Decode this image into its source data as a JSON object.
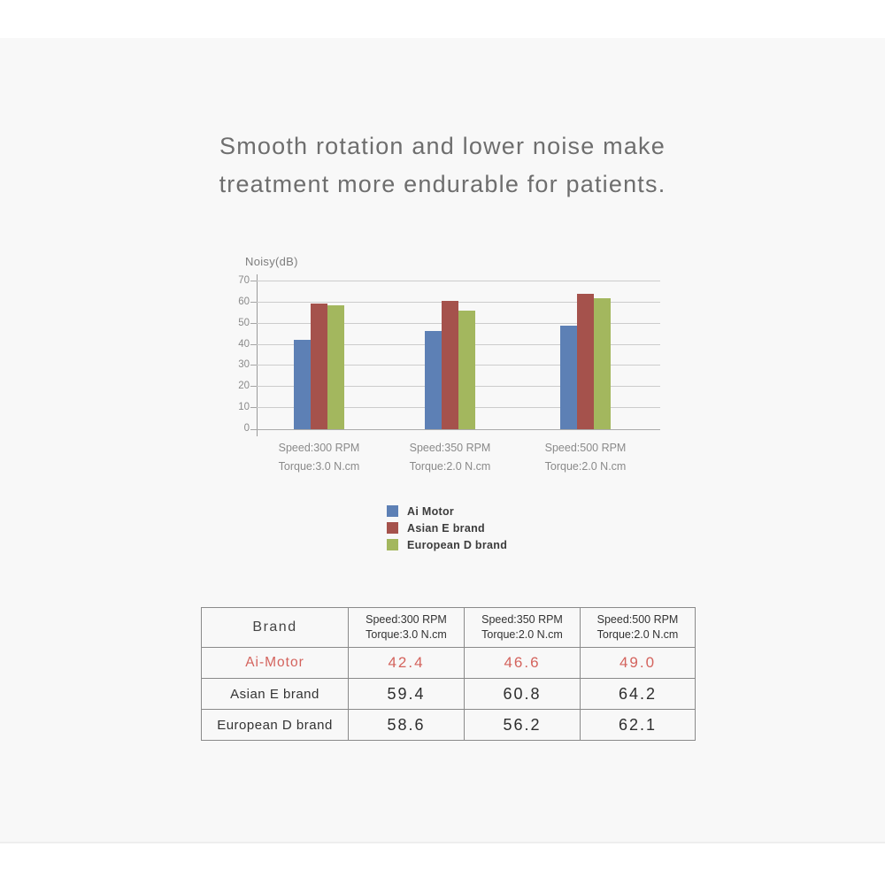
{
  "title": {
    "line1": "Smooth rotation and lower noise make",
    "line2": "treatment more endurable for patients."
  },
  "chart_data": {
    "type": "bar",
    "ylabel": "Noisy(dB)",
    "ylim": [
      0,
      70
    ],
    "ytick_step": 10,
    "grid": true,
    "legend_position": "bottom",
    "categories": [
      {
        "line1": "Speed:300 RPM",
        "line2": "Torque:3.0 N.cm"
      },
      {
        "line1": "Speed:350 RPM",
        "line2": "Torque:2.0 N.cm"
      },
      {
        "line1": "Speed:500 RPM",
        "line2": "Torque:2.0 N.cm"
      }
    ],
    "series": [
      {
        "name": "Ai Motor",
        "color": "#5d80b5",
        "values": [
          42.4,
          46.6,
          49.0
        ]
      },
      {
        "name": "Asian E brand",
        "color": "#a5524c",
        "values": [
          59.4,
          60.8,
          64.2
        ]
      },
      {
        "name": "European D brand",
        "color": "#a3b75e",
        "values": [
          58.6,
          56.2,
          62.1
        ]
      }
    ]
  },
  "table": {
    "brand_header": "Brand",
    "col_headers": [
      {
        "line1": "Speed:300 RPM",
        "line2": "Torque:3.0 N.cm"
      },
      {
        "line1": "Speed:350 RPM",
        "line2": "Torque:2.0 N.cm"
      },
      {
        "line1": "Speed:500 RPM",
        "line2": "Torque:2.0 N.cm"
      }
    ],
    "rows": [
      {
        "brand": "Ai-Motor",
        "values": [
          "42.4",
          "46.6",
          "49.0"
        ],
        "highlight": true
      },
      {
        "brand": "Asian E brand",
        "values": [
          "59.4",
          "60.8",
          "64.2"
        ],
        "highlight": false
      },
      {
        "brand": "European D brand",
        "values": [
          "58.6",
          "56.2",
          "62.1"
        ],
        "highlight": false
      }
    ],
    "highlight_color": "#d4635d",
    "text_color": "#333333",
    "border_color": "#8a8a8a"
  },
  "colors": {
    "band_bg": "#f8f8f8",
    "title_text": "#6e6e6e",
    "gridline": "#cccccc",
    "axis": "#9a9a9a"
  }
}
